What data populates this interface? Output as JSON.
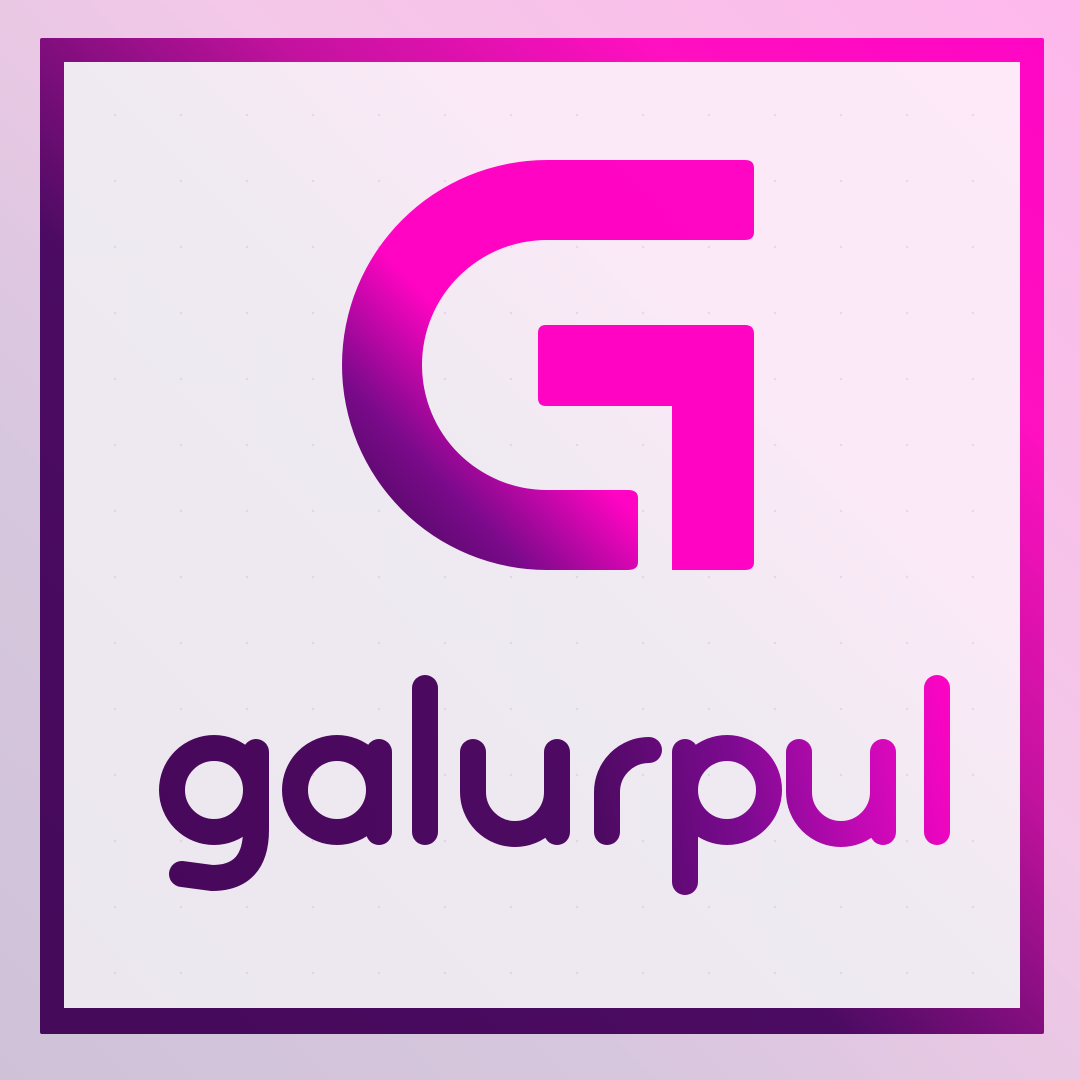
{
  "logo": {
    "wordmark": "galurpul",
    "monogram": "G"
  },
  "colors": {
    "magenta": "#ff04c2",
    "deep_purple": "#47085a",
    "frame_light": "#fbe9f7"
  },
  "icons": [
    "g-monogram-icon"
  ]
}
